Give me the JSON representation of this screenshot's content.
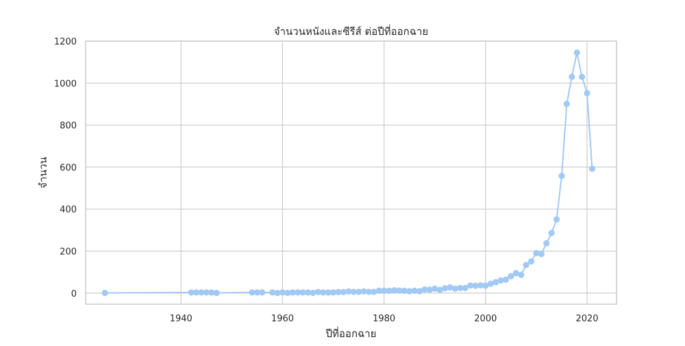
{
  "chart_data": {
    "type": "line",
    "title": "จำนวนหนังและซีรีส์ ต่อปีที่ออกฉาย",
    "xlabel": "ปีที่ออกฉาย",
    "ylabel": "จำนวน",
    "xlim": [
      1921.2,
      2025.8
    ],
    "ylim": [
      -53,
      1200
    ],
    "xticks": [
      1940,
      1960,
      1980,
      2000,
      2020
    ],
    "yticks": [
      0,
      200,
      400,
      600,
      800,
      1000,
      1200
    ],
    "grid": true,
    "colors": {
      "series": "#a1c9f4",
      "grid": "#cccccc",
      "frame": "#cccccc"
    },
    "series": [
      {
        "x": [
          1925,
          1942,
          1943,
          1944,
          1945,
          1946,
          1947,
          1954,
          1955,
          1956,
          1958,
          1959,
          1960,
          1961,
          1962,
          1963,
          1964,
          1965,
          1966,
          1967,
          1968,
          1969,
          1970,
          1971,
          1972,
          1973,
          1974,
          1975,
          1976,
          1977,
          1978,
          1979,
          1980,
          1981,
          1982,
          1983,
          1984,
          1985,
          1986,
          1987,
          1988,
          1989,
          1990,
          1991,
          1992,
          1993,
          1994,
          1995,
          1996,
          1997,
          1998,
          1999,
          2000,
          2001,
          2002,
          2003,
          2004,
          2005,
          2006,
          2007,
          2008,
          2009,
          2010,
          2011,
          2012,
          2013,
          2014,
          2015,
          2016,
          2017,
          2018,
          2019,
          2020,
          2021
        ],
        "y": [
          1,
          3,
          3,
          3,
          3,
          3,
          1,
          3,
          3,
          3,
          3,
          1,
          3,
          1,
          3,
          3,
          3,
          3,
          1,
          5,
          3,
          3,
          3,
          5,
          5,
          8,
          6,
          6,
          8,
          6,
          6,
          11,
          11,
          11,
          13,
          12,
          11,
          9,
          11,
          9,
          17,
          16,
          21,
          15,
          23,
          27,
          21,
          24,
          24,
          36,
          35,
          37,
          35,
          44,
          52,
          60,
          64,
          80,
          95,
          87,
          134,
          151,
          190,
          186,
          237,
          286,
          351,
          558,
          901,
          1030,
          1145,
          1030,
          952,
          592
        ]
      }
    ]
  }
}
